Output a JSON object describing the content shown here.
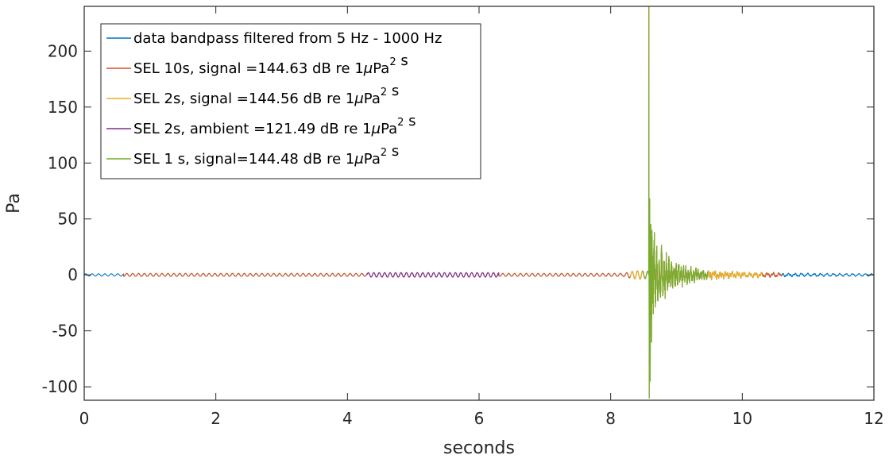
{
  "chart_data": {
    "type": "line",
    "title": "",
    "xlabel": "seconds",
    "ylabel": "Pa",
    "xlim": [
      0,
      12
    ],
    "ylim": [
      -112,
      240
    ],
    "x_ticks": [
      0,
      2,
      4,
      6,
      8,
      10,
      12
    ],
    "x_tick_labels": [
      "0",
      "2",
      "4",
      "6",
      "8",
      "10",
      "12"
    ],
    "y_ticks": [
      -100,
      -50,
      0,
      50,
      100,
      150,
      200
    ],
    "y_tick_labels": [
      "-100",
      "-50",
      "0",
      "50",
      "100",
      "150",
      "200"
    ],
    "grid": false,
    "box": true,
    "legend_position": "top-left",
    "series": [
      {
        "name": "data bandpass filtered from 5 Hz - 1000 Hz",
        "legend_parts": [
          {
            "t": "data bandpass filtered from 5 Hz - 1000 Hz"
          }
        ],
        "color": "#0072BD",
        "x_range": [
          0,
          12
        ],
        "description": "oscillating pressure signal around 0 Pa, ambient amplitude about 1 Pa"
      },
      {
        "name": "SEL 10s, signal =144.63 dB re 1μPa² s",
        "legend_parts": [
          {
            "t": "SEL 10s, signal =144.63 dB re 1"
          },
          {
            "t": "μ",
            "italic": true
          },
          {
            "t": "Pa"
          },
          {
            "t": "2",
            "sup": true
          },
          {
            "t": " s"
          }
        ],
        "color": "#D95319",
        "x_range": [
          0.6,
          10.6
        ],
        "description": "10 s signal window, ambient amplitude about 1.5 Pa"
      },
      {
        "name": "SEL 2s, signal =144.56 dB re 1μPa² s",
        "legend_parts": [
          {
            "t": "SEL 2s, signal =144.56 dB re 1"
          },
          {
            "t": "μ",
            "italic": true
          },
          {
            "t": "Pa"
          },
          {
            "t": "2",
            "sup": true
          },
          {
            "t": " s"
          }
        ],
        "color": "#EDB120",
        "x_range": [
          8.3,
          10.3
        ],
        "description": "2 s window around the transient"
      },
      {
        "name": "SEL 2s, ambient =121.49 dB re 1μPa² s",
        "legend_parts": [
          {
            "t": "SEL 2s, ambient =121.49 dB re 1"
          },
          {
            "t": "μ",
            "italic": true
          },
          {
            "t": "Pa"
          },
          {
            "t": "2",
            "sup": true
          },
          {
            "t": " s"
          }
        ],
        "color": "#7E2F8E",
        "x_range": [
          4.3,
          6.3
        ],
        "description": "2 s ambient window, amplitude about 2 Pa"
      },
      {
        "name": "SEL 1 s, signal=144.48 dB re 1μPa² s",
        "legend_parts": [
          {
            "t": "SEL 1 s, signal=144.48 dB re 1"
          },
          {
            "t": "μ",
            "italic": true
          },
          {
            "t": "Pa"
          },
          {
            "t": "2",
            "sup": true
          },
          {
            "t": " s"
          }
        ],
        "color": "#77AC30",
        "x_range": [
          8.48,
          9.48
        ],
        "description": "1 s window containing the transient peak"
      }
    ],
    "transient": {
      "onset_s": 8.58,
      "peak_positive_pa": 240,
      "peak_negative_pa": -110,
      "decay_end_s": 9.5
    }
  }
}
